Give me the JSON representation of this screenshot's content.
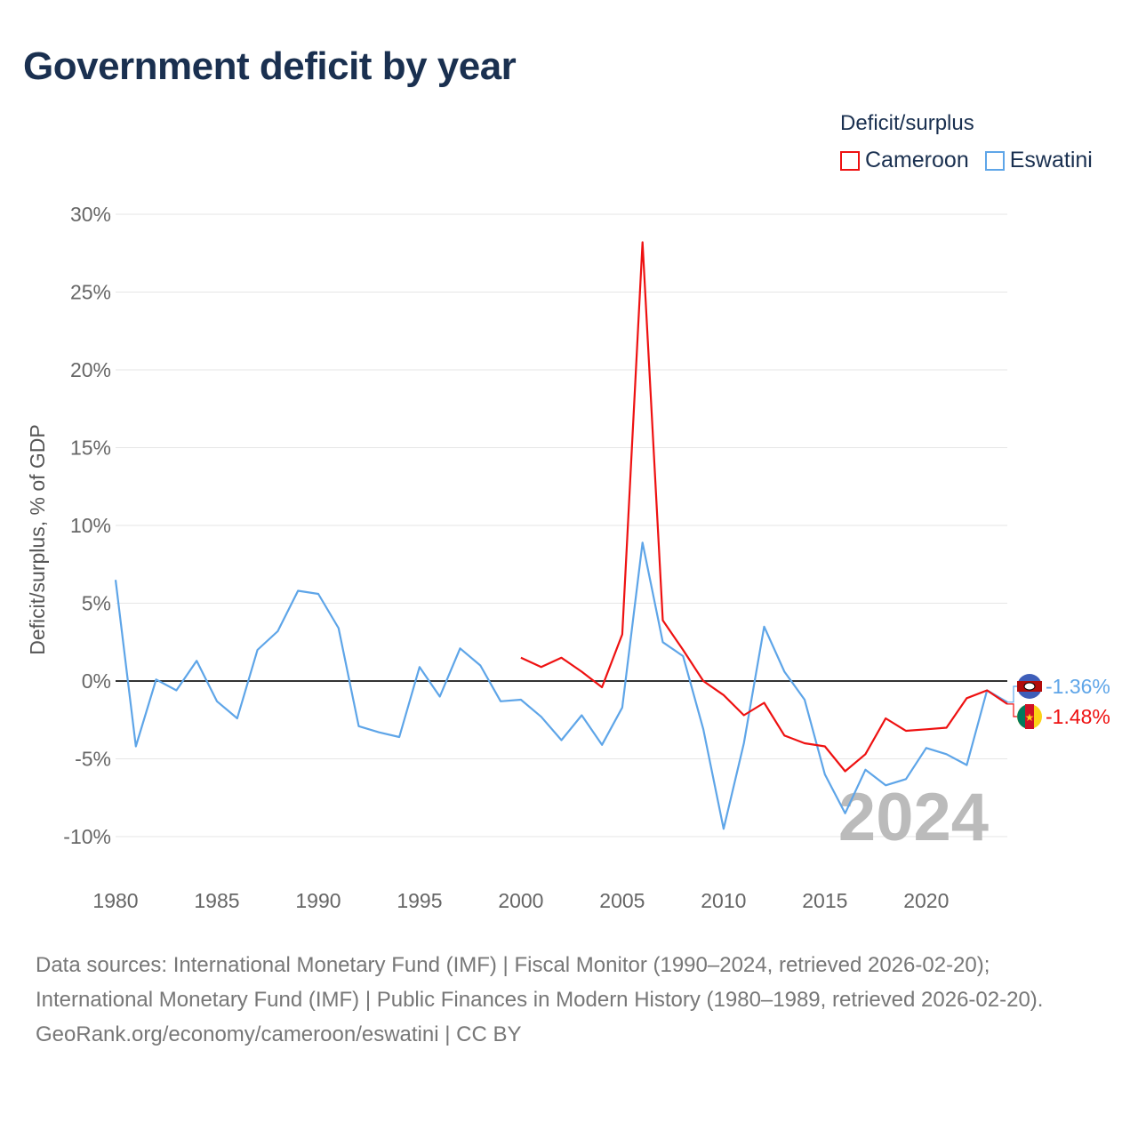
{
  "chart_data": {
    "type": "line",
    "title": "Government deficit by year",
    "ylabel": "Deficit/surplus, % of GDP",
    "xlabel": "",
    "ylim": [
      -10,
      30
    ],
    "xlim": [
      1980,
      2024
    ],
    "yticks": [
      30,
      25,
      20,
      15,
      10,
      5,
      0,
      -5,
      -10
    ],
    "ytick_labels": [
      "30%",
      "25%",
      "20%",
      "15%",
      "10%",
      "5%",
      "0%",
      "-5%",
      "-10%"
    ],
    "xticks": [
      1980,
      1985,
      1990,
      1995,
      2000,
      2005,
      2010,
      2015,
      2020
    ],
    "xtick_labels": [
      "1980",
      "1985",
      "1990",
      "1995",
      "2000",
      "2005",
      "2010",
      "2015",
      "2020"
    ],
    "grid": true,
    "legend_title": "Deficit/surplus",
    "legend_position": "top-right",
    "year_watermark": "2024",
    "series": [
      {
        "name": "Cameroon",
        "color": "#ee1111",
        "end_label": "-1.48%",
        "x": [
          2000,
          2001,
          2002,
          2003,
          2004,
          2005,
          2006,
          2007,
          2008,
          2009,
          2010,
          2011,
          2012,
          2013,
          2014,
          2015,
          2016,
          2017,
          2018,
          2019,
          2020,
          2021,
          2022,
          2023,
          2024
        ],
        "y": [
          1.5,
          0.9,
          1.5,
          0.6,
          -0.4,
          3.0,
          28.2,
          3.9,
          2.0,
          0.0,
          -0.9,
          -2.2,
          -1.4,
          -3.5,
          -4.0,
          -4.2,
          -5.8,
          -4.7,
          -2.4,
          -3.2,
          -3.1,
          -3.0,
          -1.1,
          -0.6,
          -1.48
        ]
      },
      {
        "name": "Eswatini",
        "color": "#5ea5e8",
        "end_label": "-1.36%",
        "x": [
          1980,
          1981,
          1982,
          1983,
          1984,
          1985,
          1986,
          1987,
          1988,
          1989,
          1990,
          1991,
          1992,
          1993,
          1994,
          1995,
          1996,
          1997,
          1998,
          1999,
          2000,
          2001,
          2002,
          2003,
          2004,
          2005,
          2006,
          2007,
          2008,
          2009,
          2010,
          2011,
          2012,
          2013,
          2014,
          2015,
          2016,
          2017,
          2018,
          2019,
          2020,
          2021,
          2022,
          2023,
          2024
        ],
        "y": [
          6.5,
          -4.2,
          0.1,
          -0.6,
          1.3,
          -1.3,
          -2.4,
          2.0,
          3.2,
          5.8,
          5.6,
          3.4,
          -2.9,
          -3.3,
          -3.6,
          0.9,
          -1.0,
          2.1,
          1.0,
          -1.3,
          -1.2,
          -2.3,
          -3.8,
          -2.2,
          -4.1,
          -1.7,
          8.9,
          2.5,
          1.6,
          -3.1,
          -9.5,
          -4.0,
          3.5,
          0.6,
          -1.2,
          -6.0,
          -8.5,
          -5.7,
          -6.7,
          -6.3,
          -4.3,
          -4.7,
          -5.4,
          -0.6,
          -1.36
        ]
      }
    ]
  },
  "footer": {
    "sources": "Data sources: International Monetary Fund (IMF) | Fiscal Monitor (1990–2024, retrieved 2026-02-20); International Monetary Fund (IMF) | Public Finances in Modern History (1980–1989, retrieved 2026-02-20).",
    "link": "GeoRank.org/economy/cameroon/eswatini | CC BY"
  }
}
